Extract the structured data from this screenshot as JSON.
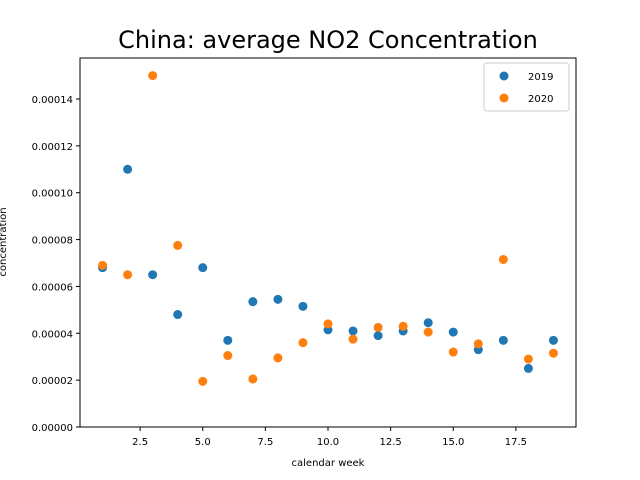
{
  "chart_data": {
    "type": "scatter",
    "title": "China: average NO2 Concentration",
    "xlabel": "calendar week",
    "ylabel": "concentration",
    "xlim": [
      0.1,
      19.9
    ],
    "ylim": [
      0,
      0.0001575
    ],
    "x_ticks": [
      2.5,
      5.0,
      7.5,
      10.0,
      12.5,
      15.0,
      17.5
    ],
    "x_tick_labels": [
      "2.5",
      "5.0",
      "7.5",
      "10.0",
      "12.5",
      "15.0",
      "17.5"
    ],
    "y_ticks": [
      0,
      2e-05,
      4e-05,
      6e-05,
      8e-05,
      0.0001,
      0.00012,
      0.00014
    ],
    "y_tick_labels": [
      "0.00000",
      "0.00002",
      "0.00004",
      "0.00006",
      "0.00008",
      "0.00010",
      "0.00012",
      "0.00014"
    ],
    "grid": false,
    "legend_position": "top-right",
    "series": [
      {
        "name": "2019",
        "color": "#1f77b4",
        "x": [
          1,
          2,
          3,
          4,
          5,
          6,
          7,
          8,
          9,
          10,
          11,
          12,
          13,
          14,
          15,
          16,
          17,
          18,
          19
        ],
        "y": [
          6.8e-05,
          0.00011,
          6.5e-05,
          4.8e-05,
          6.8e-05,
          3.7e-05,
          5.35e-05,
          5.45e-05,
          5.15e-05,
          4.15e-05,
          4.1e-05,
          3.9e-05,
          4.1e-05,
          4.45e-05,
          4.05e-05,
          3.3e-05,
          3.7e-05,
          2.5e-05,
          3.7e-05
        ]
      },
      {
        "name": "2020",
        "color": "#ff7f0e",
        "x": [
          1,
          2,
          3,
          4,
          5,
          6,
          7,
          8,
          9,
          10,
          11,
          12,
          13,
          14,
          15,
          16,
          17,
          18,
          19
        ],
        "y": [
          6.9e-05,
          6.5e-05,
          0.00015,
          7.75e-05,
          1.95e-05,
          3.05e-05,
          2.05e-05,
          2.95e-05,
          3.6e-05,
          4.4e-05,
          3.75e-05,
          4.25e-05,
          4.3e-05,
          4.05e-05,
          3.2e-05,
          3.55e-05,
          7.15e-05,
          2.9e-05,
          3.15e-05
        ]
      }
    ]
  }
}
